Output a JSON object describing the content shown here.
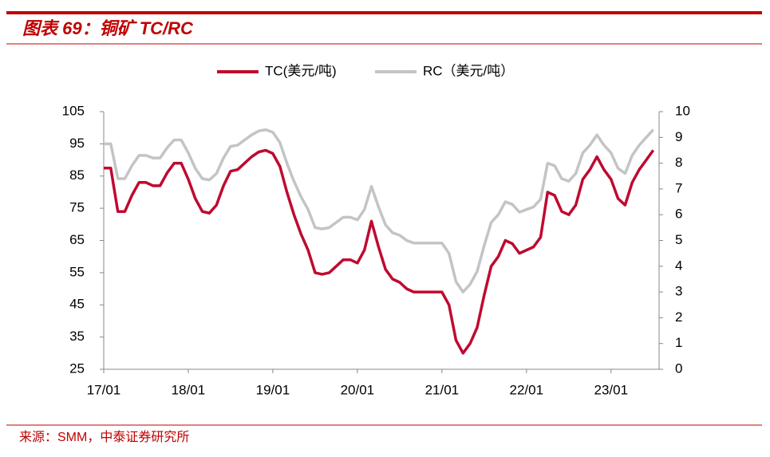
{
  "header": {
    "title": "图表 69：铜矿 TC/RC"
  },
  "chart_data": {
    "type": "line",
    "categories": [
      "17/01",
      null,
      null,
      null,
      null,
      null,
      null,
      null,
      null,
      null,
      null,
      null,
      "18/01",
      null,
      null,
      null,
      null,
      null,
      null,
      null,
      null,
      null,
      null,
      null,
      "19/01",
      null,
      null,
      null,
      null,
      null,
      null,
      null,
      null,
      null,
      null,
      null,
      "20/01",
      null,
      null,
      null,
      null,
      null,
      null,
      null,
      null,
      null,
      null,
      null,
      "21/01",
      null,
      null,
      null,
      null,
      null,
      null,
      null,
      null,
      null,
      null,
      null,
      "22/01",
      null,
      null,
      null,
      null,
      null,
      null,
      null,
      null,
      null,
      null,
      null,
      "23/01",
      null,
      null,
      null,
      null,
      null,
      null
    ],
    "series": [
      {
        "name": "TC(美元/吨)",
        "color": "#bf0a30",
        "axis": "y",
        "values": [
          87.5,
          87.5,
          74,
          74,
          79,
          83,
          83,
          82,
          82,
          86,
          89,
          89,
          84,
          78,
          74,
          73.5,
          76,
          82,
          86.5,
          87,
          89,
          91,
          92.5,
          93,
          92,
          88,
          80,
          73,
          67,
          62,
          55,
          54.5,
          55,
          57,
          59,
          59,
          58,
          62,
          71,
          63,
          56,
          53,
          52,
          50,
          49,
          49,
          49,
          49,
          49,
          45,
          34,
          30,
          33,
          38,
          48,
          57,
          60,
          65,
          64,
          61,
          62,
          63,
          66,
          80,
          79,
          74,
          73,
          76,
          84,
          87,
          91,
          87,
          84,
          78,
          76,
          83,
          87,
          90,
          93
        ]
      },
      {
        "name": "RC（美元/吨）",
        "color": "#c4c4c4",
        "axis": "y2",
        "values": [
          8.75,
          8.75,
          7.4,
          7.4,
          7.9,
          8.3,
          8.3,
          8.2,
          8.2,
          8.6,
          8.9,
          8.9,
          8.4,
          7.8,
          7.4,
          7.35,
          7.6,
          8.2,
          8.65,
          8.7,
          8.9,
          9.1,
          9.25,
          9.3,
          9.2,
          8.8,
          8.0,
          7.3,
          6.7,
          6.2,
          5.5,
          5.45,
          5.5,
          5.7,
          5.9,
          5.9,
          5.8,
          6.2,
          7.1,
          6.3,
          5.6,
          5.3,
          5.2,
          5.0,
          4.9,
          4.9,
          4.9,
          4.9,
          4.9,
          4.5,
          3.4,
          3.0,
          3.3,
          3.8,
          4.8,
          5.7,
          6.0,
          6.5,
          6.4,
          6.1,
          6.2,
          6.3,
          6.6,
          8.0,
          7.9,
          7.4,
          7.3,
          7.6,
          8.4,
          8.7,
          9.1,
          8.7,
          8.4,
          7.8,
          7.6,
          8.3,
          8.7,
          9.0,
          9.3
        ]
      }
    ],
    "ylim": [
      25,
      105
    ],
    "yticks": [
      25,
      35,
      45,
      55,
      65,
      75,
      85,
      95,
      105
    ],
    "y2lim": [
      0,
      10
    ],
    "y2ticks": [
      0,
      1,
      2,
      3,
      4,
      5,
      6,
      7,
      8,
      9,
      10
    ],
    "legend": "top"
  },
  "footer": {
    "source": "来源：SMM，中泰证券研究所"
  }
}
